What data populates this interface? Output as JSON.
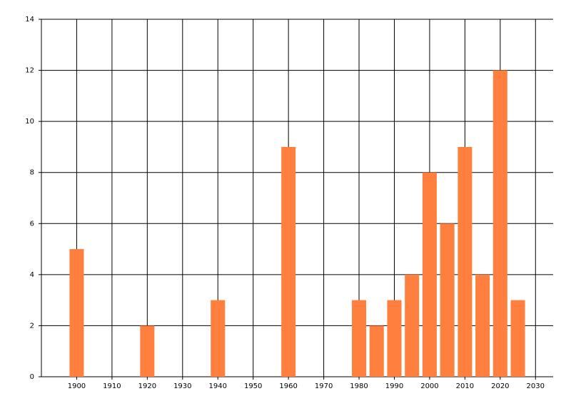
{
  "chart_data": {
    "type": "bar",
    "x": [
      1900,
      1920,
      1940,
      1960,
      1980,
      1985,
      1990,
      1995,
      2000,
      2005,
      2010,
      2015,
      2020,
      2025
    ],
    "values": [
      5,
      2,
      3,
      9,
      3,
      2,
      3,
      4,
      8,
      6,
      9,
      4,
      12,
      3
    ],
    "color": "#ff7f3f",
    "xlim": [
      1890,
      2035
    ],
    "xticks": [
      1900,
      1910,
      1920,
      1930,
      1940,
      1950,
      1960,
      1970,
      1980,
      1990,
      2000,
      2010,
      2020,
      2030
    ],
    "ylim": [
      0,
      14
    ],
    "yticks": [
      0,
      2,
      4,
      6,
      8,
      10,
      12,
      14
    ],
    "grid": true
  }
}
